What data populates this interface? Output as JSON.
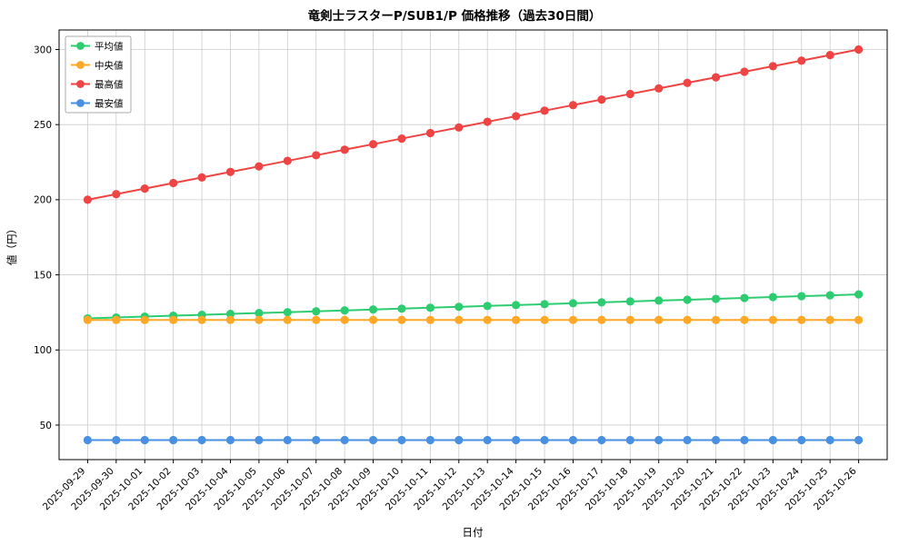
{
  "title": "竜剣士ラスターP/SUB1/P 価格推移（過去30日間）",
  "chart_data": {
    "type": "line",
    "title": "竜剣士ラスターP/SUB1/P 価格推移（過去30日間）",
    "xlabel": "日付",
    "ylabel": "値（円）",
    "x": [
      "2025-09-29",
      "2025-09-30",
      "2025-10-01",
      "2025-10-02",
      "2025-10-03",
      "2025-10-04",
      "2025-10-05",
      "2025-10-06",
      "2025-10-07",
      "2025-10-08",
      "2025-10-09",
      "2025-10-10",
      "2025-10-11",
      "2025-10-12",
      "2025-10-13",
      "2025-10-14",
      "2025-10-15",
      "2025-10-16",
      "2025-10-17",
      "2025-10-18",
      "2025-10-19",
      "2025-10-20",
      "2025-10-21",
      "2025-10-22",
      "2025-10-23",
      "2025-10-24",
      "2025-10-25",
      "2025-10-26"
    ],
    "series": [
      {
        "key": "average",
        "name": "平均値",
        "color": "#2ecc71",
        "values": [
          121.0,
          121.6,
          122.2,
          122.8,
          123.4,
          124.0,
          124.6,
          125.1,
          125.7,
          126.3,
          126.9,
          127.5,
          128.1,
          128.7,
          129.3,
          129.9,
          130.5,
          131.1,
          131.7,
          132.3,
          132.9,
          133.4,
          134.0,
          134.6,
          135.2,
          135.8,
          136.4,
          137.0
        ]
      },
      {
        "key": "median",
        "name": "中央値",
        "color": "#ffa726",
        "values": [
          120,
          120,
          120,
          120,
          120,
          120,
          120,
          120,
          120,
          120,
          120,
          120,
          120,
          120,
          120,
          120,
          120,
          120,
          120,
          120,
          120,
          120,
          120,
          120,
          120,
          120,
          120,
          120
        ]
      },
      {
        "key": "max",
        "name": "最高値",
        "color": "#ef4444",
        "values": [
          200.0,
          203.7,
          207.4,
          211.1,
          214.8,
          218.5,
          222.2,
          225.9,
          229.6,
          233.3,
          237.0,
          240.7,
          244.4,
          248.1,
          251.9,
          255.6,
          259.3,
          263.0,
          266.7,
          270.4,
          274.1,
          277.8,
          281.5,
          285.2,
          288.9,
          292.6,
          296.3,
          300.0
        ]
      },
      {
        "key": "min",
        "name": "最安値",
        "color": "#4a90e2",
        "values": [
          40,
          40,
          40,
          40,
          40,
          40,
          40,
          40,
          40,
          40,
          40,
          40,
          40,
          40,
          40,
          40,
          40,
          40,
          40,
          40,
          40,
          40,
          40,
          40,
          40,
          40,
          40,
          40
        ]
      }
    ],
    "ylim": [
      27,
      313
    ],
    "yticks": [
      50,
      100,
      150,
      200,
      250,
      300
    ],
    "grid": true,
    "legend_position": "upper left"
  }
}
